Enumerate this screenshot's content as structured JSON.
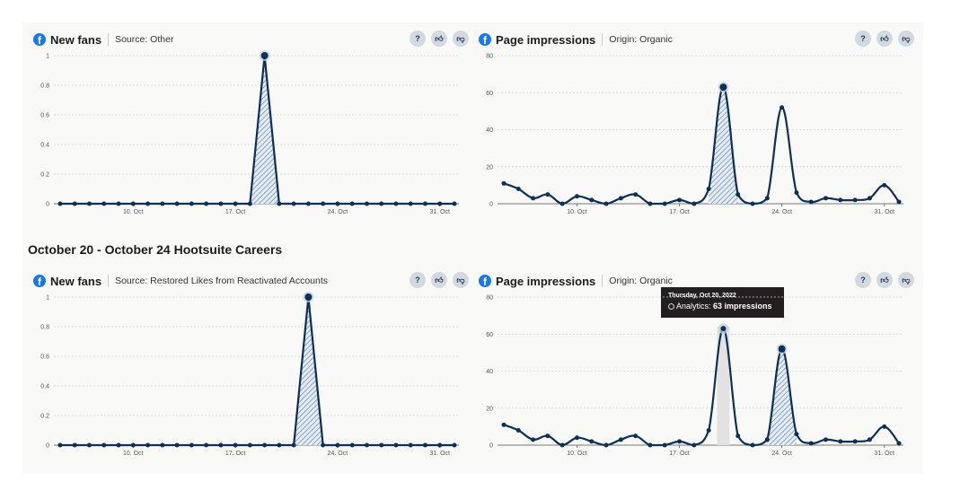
{
  "section_heading": "October 20 - October 24 Hootsuite Careers",
  "buttons": {
    "help_icon": "question-circle-icon",
    "like_icon": "thumbs-up-icon",
    "dislike_icon": "thumbs-down-icon"
  },
  "colors": {
    "line": "#0e2f56",
    "facebook": "#1877f2",
    "hatch": "#6f8fb5"
  },
  "panels": [
    {
      "title": "New fans",
      "subtitle": "Source: Other"
    },
    {
      "title": "Page impressions",
      "subtitle": "Origin: Organic"
    },
    {
      "title": "New fans",
      "subtitle": "Source: Restored Likes from Reactivated Accounts"
    },
    {
      "title": "Page impressions",
      "subtitle": "Origin: Organic"
    }
  ],
  "tooltip": {
    "date": "Thursday, Oct 20, 2022",
    "label": "Analytics:",
    "value": "63 impressions"
  },
  "chart_data": [
    {
      "type": "line",
      "title": "New fans",
      "x_start": "5 Oct",
      "x_ticks": [
        "10. Oct",
        "17. Oct",
        "24. Oct",
        "31. Oct"
      ],
      "y_ticks": [
        "0",
        "0.2",
        "0.4",
        "0.6",
        "0.8",
        "1"
      ],
      "ylim": [
        0,
        1
      ],
      "grid": true,
      "smooth": false,
      "values": [
        0,
        0,
        0,
        0,
        0,
        0,
        0,
        0,
        0,
        0,
        0,
        0,
        0,
        0,
        1,
        0,
        0,
        0,
        0,
        0,
        0,
        0,
        0,
        0,
        0,
        0,
        0,
        0
      ],
      "highlight_range": [
        "18 Oct",
        "20 Oct"
      ],
      "marked_point": "19 Oct"
    },
    {
      "type": "line",
      "title": "Page impressions",
      "x_start": "5 Oct",
      "x_ticks": [
        "10. Oct",
        "17. Oct",
        "24. Oct",
        "31. Oct"
      ],
      "y_ticks": [
        "0",
        "20",
        "40",
        "60",
        "80"
      ],
      "ylim": [
        0,
        80
      ],
      "grid": true,
      "smooth": true,
      "values": [
        11,
        8,
        3,
        5,
        0,
        4,
        2,
        0,
        3,
        5,
        0,
        0,
        2,
        0,
        8,
        63,
        5,
        0,
        3,
        52,
        6,
        1,
        3,
        2,
        2,
        3,
        10,
        1
      ],
      "highlight_range": [
        "19 Oct",
        "21 Oct"
      ],
      "marked_point": "20 Oct"
    },
    {
      "type": "line",
      "title": "New fans",
      "x_start": "5 Oct",
      "x_ticks": [
        "10. Oct",
        "17. Oct",
        "24. Oct",
        "31. Oct"
      ],
      "y_ticks": [
        "0",
        "0.2",
        "0.4",
        "0.6",
        "0.8",
        "1"
      ],
      "ylim": [
        0,
        1
      ],
      "grid": true,
      "smooth": false,
      "values": [
        0,
        0,
        0,
        0,
        0,
        0,
        0,
        0,
        0,
        0,
        0,
        0,
        0,
        0,
        0,
        0,
        0,
        1,
        0,
        0,
        0,
        0,
        0,
        0,
        0,
        0,
        0,
        0
      ],
      "highlight_range": [
        "21 Oct",
        "23 Oct"
      ],
      "marked_point": "22 Oct"
    },
    {
      "type": "line",
      "title": "Page impressions",
      "x_start": "5 Oct",
      "x_ticks": [
        "10. Oct",
        "17. Oct",
        "24. Oct",
        "31. Oct"
      ],
      "y_ticks": [
        "0",
        "20",
        "40",
        "60",
        "80"
      ],
      "ylim": [
        0,
        80
      ],
      "grid": true,
      "smooth": true,
      "values": [
        11,
        8,
        3,
        5,
        0,
        4,
        2,
        0,
        3,
        5,
        0,
        0,
        2,
        0,
        8,
        63,
        5,
        0,
        3,
        52,
        6,
        1,
        3,
        2,
        2,
        3,
        10,
        1
      ],
      "highlight_range": [
        "23 Oct",
        "25 Oct"
      ],
      "marked_point": "24 Oct",
      "hover_point": "20 Oct"
    }
  ]
}
